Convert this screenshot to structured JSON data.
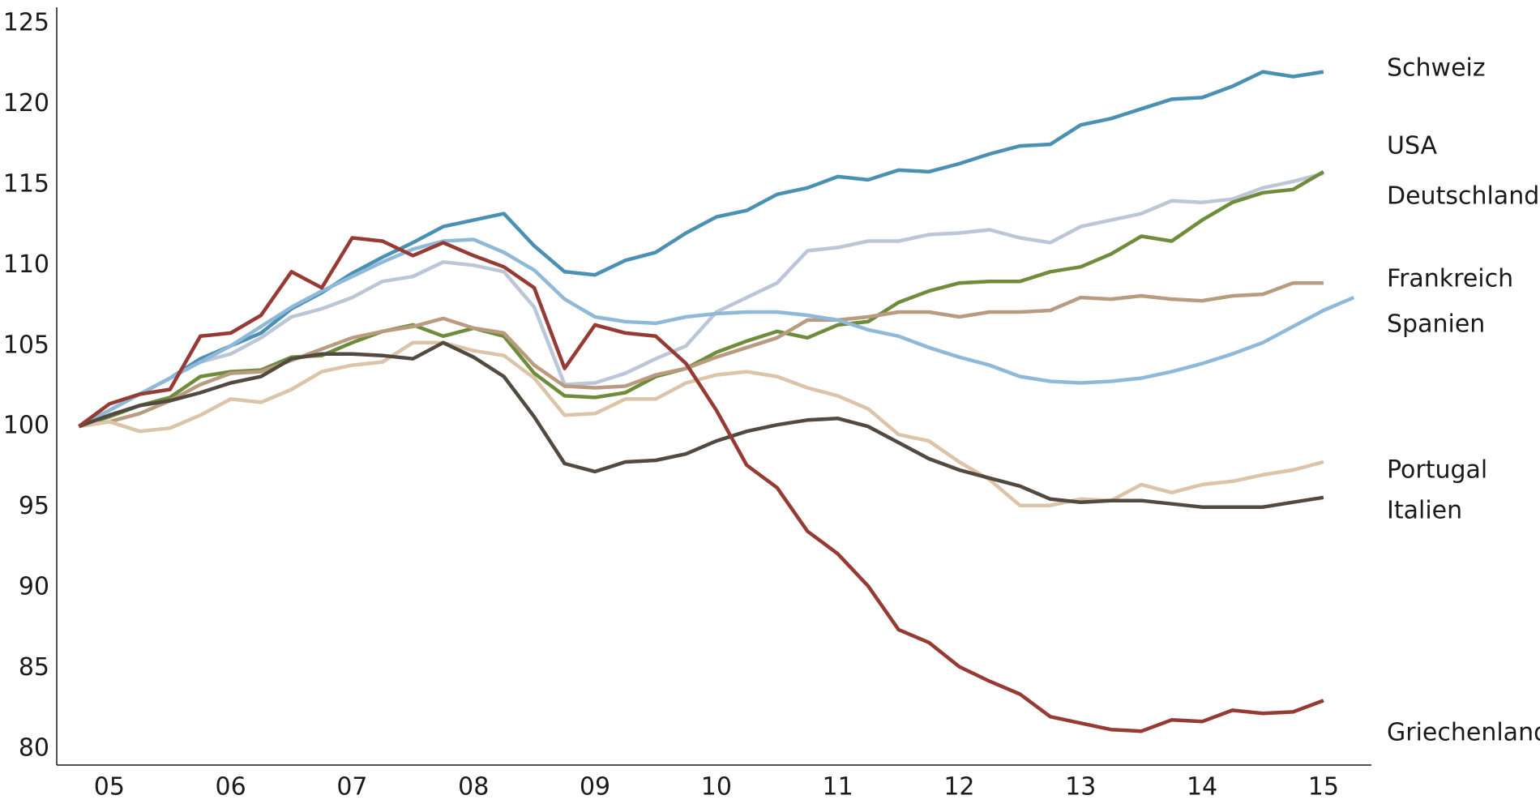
{
  "chart_data": {
    "type": "line",
    "categories": [
      null,
      "05",
      null,
      null,
      null,
      "06",
      null,
      null,
      null,
      "07",
      null,
      null,
      null,
      "08",
      null,
      null,
      null,
      "09",
      null,
      null,
      null,
      "10",
      null,
      null,
      null,
      "11",
      null,
      null,
      null,
      "12",
      null,
      null,
      null,
      "13",
      null,
      null,
      null,
      "14",
      null,
      null,
      null,
      "15",
      null
    ],
    "ylim": [
      79,
      126
    ],
    "yticks": [
      80,
      85,
      90,
      95,
      100,
      105,
      110,
      115,
      120,
      125
    ],
    "series": [
      {
        "name": "Schweiz",
        "color": "#4a90b2",
        "values": [
          100,
          101,
          102,
          103,
          104.2,
          105,
          105.8,
          107.3,
          108.3,
          109.5,
          110.5,
          111.4,
          112.4,
          112.8,
          113.2,
          111.2,
          109.6,
          109.4,
          110.3,
          110.8,
          112,
          113,
          113.4,
          114.4,
          114.8,
          115.5,
          115.3,
          115.9,
          115.8,
          116.3,
          116.9,
          117.4,
          117.5,
          118.7,
          119.1,
          119.7,
          120.3,
          120.4,
          121.1,
          122,
          121.7,
          122,
          null
        ]
      },
      {
        "name": "USA",
        "color": "#bcc6d6",
        "values": [
          100,
          101,
          102,
          103,
          104,
          104.5,
          105.5,
          106.8,
          107.3,
          108,
          109,
          109.3,
          110.2,
          110,
          109.6,
          107.4,
          102.6,
          102.7,
          103.3,
          104.2,
          105,
          107.1,
          108,
          108.9,
          110.9,
          111.1,
          111.5,
          111.5,
          111.9,
          112,
          112.2,
          111.7,
          111.4,
          112.4,
          112.8,
          113.2,
          114,
          113.9,
          114.1,
          114.8,
          115.2,
          115.7,
          null
        ]
      },
      {
        "name": "Deutschland",
        "color": "#6e8c3c",
        "values": [
          100,
          100.6,
          101.3,
          101.8,
          103.1,
          103.4,
          103.5,
          104.3,
          104.4,
          105.2,
          105.9,
          106.3,
          105.6,
          106.1,
          105.6,
          103.3,
          101.9,
          101.8,
          102.1,
          103.1,
          103.6,
          104.6,
          105.3,
          105.9,
          105.5,
          106.3,
          106.5,
          107.7,
          108.4,
          108.9,
          109,
          109,
          109.6,
          109.9,
          110.7,
          111.8,
          111.5,
          112.8,
          113.9,
          114.5,
          114.7,
          115.8,
          null
        ]
      },
      {
        "name": "Frankreich",
        "color": "#b99b80",
        "values": [
          100,
          100.3,
          100.8,
          101.6,
          102.6,
          103.3,
          103.4,
          104.1,
          104.8,
          105.5,
          105.9,
          106.2,
          106.7,
          106.1,
          105.8,
          103.8,
          102.5,
          102.4,
          102.5,
          103.2,
          103.6,
          104.3,
          104.9,
          105.5,
          106.6,
          106.6,
          106.8,
          107.1,
          107.1,
          106.8,
          107.1,
          107.1,
          107.2,
          108,
          107.9,
          108.1,
          107.9,
          107.8,
          108.1,
          108.2,
          108.9,
          108.9,
          null
        ]
      },
      {
        "name": "Spanien",
        "color": "#8fb9d9",
        "values": [
          100,
          101,
          102,
          103,
          104,
          105,
          106.2,
          107.4,
          108.4,
          109.3,
          110.2,
          111,
          111.5,
          111.6,
          110.8,
          109.7,
          107.9,
          106.8,
          106.5,
          106.4,
          106.8,
          107,
          107.1,
          107.1,
          106.9,
          106.6,
          106,
          105.6,
          104.9,
          104.3,
          103.8,
          103.1,
          102.8,
          102.7,
          102.8,
          103,
          103.4,
          103.9,
          104.5,
          105.2,
          106.2,
          107.2,
          108
        ]
      },
      {
        "name": "Portugal",
        "color": "#dcc4a8",
        "values": [
          100,
          100.3,
          99.7,
          99.9,
          100.7,
          101.7,
          101.5,
          102.3,
          103.4,
          103.8,
          104,
          105.2,
          105.2,
          104.7,
          104.4,
          103,
          100.7,
          100.8,
          101.7,
          101.7,
          102.7,
          103.2,
          103.4,
          103.1,
          102.4,
          101.9,
          101.1,
          99.5,
          99.1,
          97.8,
          96.7,
          95.1,
          95.1,
          95.5,
          95.4,
          96.4,
          95.9,
          96.4,
          96.6,
          97,
          97.3,
          97.8,
          null
        ]
      },
      {
        "name": "Italien",
        "color": "#524a40",
        "values": [
          100,
          100.7,
          101.3,
          101.6,
          102.1,
          102.7,
          103.1,
          104.2,
          104.5,
          104.5,
          104.4,
          104.2,
          105.2,
          104.3,
          103.1,
          100.6,
          97.7,
          97.2,
          97.8,
          97.9,
          98.3,
          99.1,
          99.7,
          100.1,
          100.4,
          100.5,
          100,
          99,
          98,
          97.3,
          96.8,
          96.3,
          95.5,
          95.3,
          95.4,
          95.4,
          95.2,
          95,
          95,
          95,
          95.3,
          95.6,
          null
        ]
      },
      {
        "name": "Griechenland",
        "color": "#963a34",
        "values": [
          100,
          101.4,
          102,
          102.3,
          105.6,
          105.8,
          106.9,
          109.6,
          108.6,
          111.7,
          111.5,
          110.6,
          111.4,
          110.6,
          109.9,
          108.6,
          103.6,
          106.3,
          105.8,
          105.6,
          103.9,
          101,
          97.6,
          96.2,
          93.5,
          92.1,
          90.1,
          87.4,
          86.6,
          85.1,
          84.2,
          83.4,
          82,
          81.6,
          81.2,
          81.1,
          81.8,
          81.7,
          82.4,
          82.2,
          82.3,
          83,
          null
        ]
      }
    ]
  }
}
